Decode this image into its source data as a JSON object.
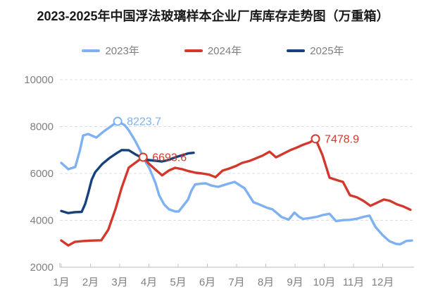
{
  "title": "2023-2025年中国浮法玻璃样本企业厂库库存走势图（万重箱）",
  "legend": [
    {
      "label": "2023年",
      "color": "#7EB1F1"
    },
    {
      "label": "2024年",
      "color": "#D2392C"
    },
    {
      "label": "2025年",
      "color": "#17417C"
    }
  ],
  "chart_data": {
    "type": "line",
    "title": "2023-2025年中国浮法玻璃样本企业厂库库存走势图（万重箱）",
    "unit": "万重箱",
    "legend_position": "top",
    "grid": "horizontal-dashed",
    "x_axis": {
      "labels": [
        "1月",
        "2月",
        "3月",
        "4月",
        "5月",
        "6月",
        "7月",
        "8月",
        "9月",
        "10月",
        "11月",
        "12月"
      ],
      "range": [
        0,
        12
      ]
    },
    "y_axis": {
      "ticks": [
        2000,
        4000,
        6000,
        8000,
        10000
      ],
      "tick_labels": [
        "2000",
        "4000",
        "6000",
        "8000",
        "10000"
      ],
      "range": [
        2000,
        10000
      ]
    },
    "series": [
      {
        "name": "2023年",
        "color": "#7EB1F1",
        "x": [
          0,
          0.24,
          0.48,
          0.63,
          0.75,
          0.92,
          1.2,
          1.45,
          1.69,
          1.93,
          2.17,
          2.31,
          2.53,
          2.65,
          2.77,
          2.89,
          3.01,
          3.13,
          3.23,
          3.35,
          3.52,
          3.69,
          3.9,
          4.02,
          4.17,
          4.34,
          4.46,
          4.58,
          4.82,
          4.94,
          5.15,
          5.37,
          5.6,
          5.93,
          6.27,
          6.58,
          6.77,
          7.06,
          7.23,
          7.54,
          7.78,
          7.98,
          8.14,
          8.27,
          8.51,
          8.75,
          8.96,
          9.18,
          9.4,
          9.66,
          9.88,
          10.12,
          10.35,
          10.55,
          10.75,
          10.99,
          11.23,
          11.45,
          11.6,
          11.81,
          12
        ],
        "values": [
          6450,
          6180,
          6280,
          6940,
          7620,
          7680,
          7530,
          7790,
          8000,
          8223.7,
          8060,
          7840,
          7390,
          7100,
          6800,
          6480,
          6240,
          5880,
          5580,
          5070,
          4680,
          4470,
          4380,
          4380,
          4620,
          4890,
          5280,
          5530,
          5570,
          5580,
          5480,
          5430,
          5520,
          5640,
          5370,
          4770,
          4680,
          4530,
          4470,
          4140,
          4030,
          4330,
          4150,
          4060,
          4100,
          4150,
          4230,
          4280,
          3970,
          4010,
          4020,
          4070,
          4150,
          4200,
          3720,
          3380,
          3110,
          3000,
          2980,
          3120,
          3140
        ]
      },
      {
        "name": "2024年",
        "color": "#D2392C",
        "x": [
          0,
          0.24,
          0.46,
          0.7,
          0.92,
          1.16,
          1.37,
          1.61,
          1.86,
          2.07,
          2.31,
          2.53,
          2.8,
          2.99,
          3.23,
          3.45,
          3.69,
          3.9,
          4.14,
          4.36,
          4.6,
          4.82,
          5.06,
          5.28,
          5.52,
          5.73,
          5.98,
          6.19,
          6.43,
          6.67,
          6.89,
          7.13,
          7.35,
          7.59,
          7.83,
          8.05,
          8.29,
          8.51,
          8.7,
          8.94,
          9.18,
          9.42,
          9.64,
          9.88,
          10.12,
          10.34,
          10.58,
          10.8,
          11.04,
          11.25,
          11.49,
          11.71,
          11.95
        ],
        "values": [
          3140,
          2930,
          3080,
          3110,
          3130,
          3140,
          3150,
          3600,
          4500,
          5400,
          6250,
          6450,
          6693.6,
          6430,
          6160,
          5920,
          6130,
          6240,
          6180,
          6100,
          6030,
          6000,
          5950,
          5840,
          6120,
          6200,
          6320,
          6450,
          6530,
          6650,
          6760,
          6930,
          6690,
          6840,
          6990,
          7100,
          7230,
          7330,
          7478.9,
          6780,
          5820,
          5720,
          5640,
          5070,
          4980,
          4830,
          4620,
          4750,
          4890,
          4830,
          4680,
          4590,
          4450
        ]
      },
      {
        "name": "2025年",
        "color": "#17417C",
        "x": [
          0,
          0.24,
          0.46,
          0.7,
          0.82,
          0.92,
          1.04,
          1.16,
          1.4,
          1.64,
          1.88,
          2.07,
          2.31,
          2.53,
          2.77,
          2.99,
          3.23,
          3.45,
          3.69,
          3.9,
          4.14,
          4.36,
          4.53
        ],
        "values": [
          4400,
          4310,
          4350,
          4360,
          4700,
          5150,
          5730,
          6050,
          6400,
          6650,
          6850,
          7000,
          6990,
          6820,
          6660,
          6570,
          6540,
          6510,
          6580,
          6690,
          6780,
          6860,
          6880
        ]
      }
    ],
    "annotations": [
      {
        "series": "2023年",
        "x": 1.93,
        "value": 8223.7,
        "label": "8223.7",
        "color": "#7EB1F1"
      },
      {
        "series": "2024年",
        "x": 2.8,
        "value": 6693.6,
        "label": "6693.6",
        "color": "#D2392C"
      },
      {
        "series": "2024年",
        "x": 8.7,
        "value": 7478.9,
        "label": "7478.9",
        "color": "#D2392C"
      }
    ]
  }
}
